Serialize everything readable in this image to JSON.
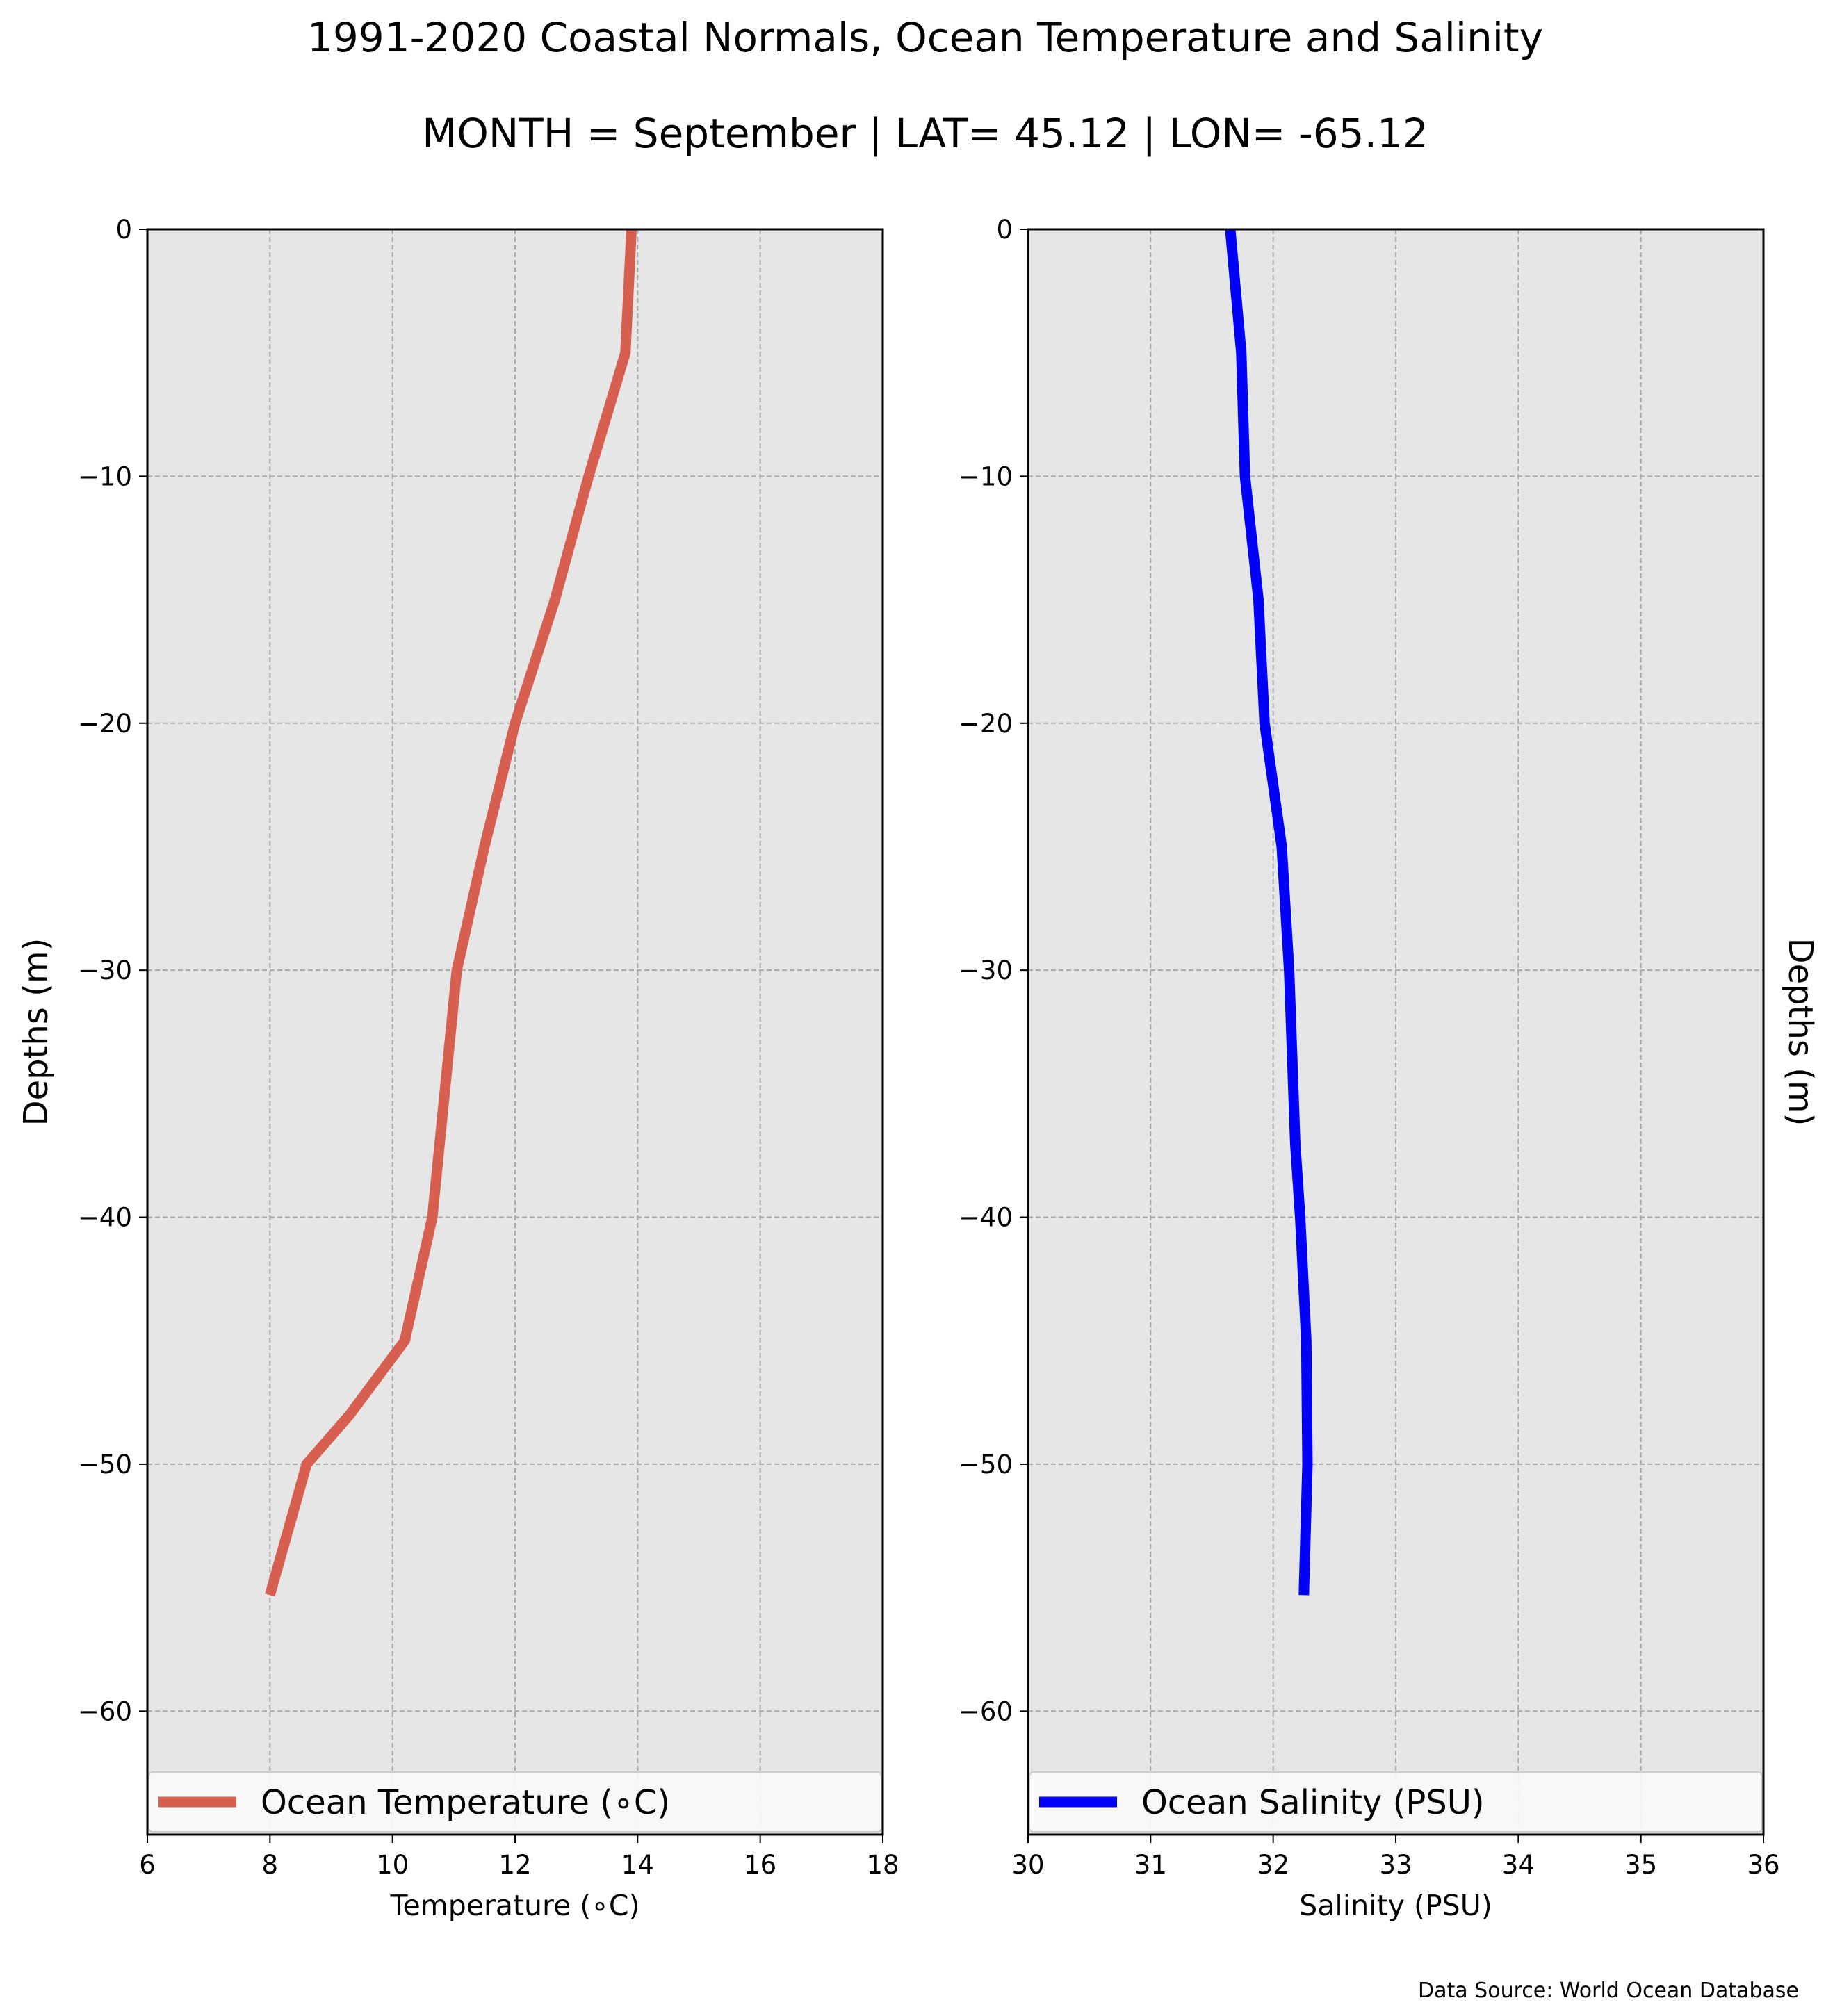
{
  "figure": {
    "title_line1": "1991-2020 Coastal Normals, Ocean Temperature and Salinity",
    "title_line2": "MONTH = September | LAT= 45.12 | LON= -65.12",
    "source_note": "Data Source: World Ocean Database",
    "colors": {
      "background": "#ffffff",
      "plot_background": "#e6e6e6",
      "grid": "#a9a9a9",
      "temperature_line": "#d65f4f",
      "salinity_line": "#0000ff",
      "legend_background": "#f9f9f9"
    }
  },
  "chart_data": [
    {
      "type": "line",
      "xlabel": "Temperature ($^\\circ$C)",
      "xlabel_display": "Temperature (∘C)",
      "ylabel": "Depths (m)",
      "xlim": [
        6,
        18
      ],
      "ylim": [
        -65,
        0
      ],
      "xticks": [
        6,
        8,
        10,
        12,
        14,
        16,
        18
      ],
      "yticks": [
        0,
        -10,
        -20,
        -30,
        -40,
        -50,
        -60
      ],
      "ytick_labels": [
        "0",
        "−10",
        "−20",
        "−30",
        "−40",
        "−50",
        "−60"
      ],
      "grid": true,
      "legend_position": "bottom",
      "series": [
        {
          "name": "Ocean Temperature (∘C)",
          "color": "#d65f4f",
          "x": [
            13.9,
            13.8,
            13.2,
            12.65,
            12.0,
            11.5,
            11.05,
            10.85,
            10.65,
            10.2,
            9.3,
            8.6,
            8.0
          ],
          "y": [
            0,
            -5,
            -10,
            -15,
            -20,
            -25,
            -30,
            -35,
            -40,
            -45,
            -48,
            -50,
            -55.3
          ]
        }
      ]
    },
    {
      "type": "line",
      "xlabel": "Salinity (PSU)",
      "ylabel": "Depths (m)",
      "xlim": [
        30,
        36
      ],
      "ylim": [
        -65,
        0
      ],
      "xticks": [
        30,
        31,
        32,
        33,
        34,
        35,
        36
      ],
      "yticks": [
        0,
        -10,
        -20,
        -30,
        -40,
        -50,
        -60
      ],
      "ytick_labels": [
        "0",
        "−10",
        "−20",
        "−30",
        "−40",
        "−50",
        "−60"
      ],
      "grid": true,
      "legend_position": "bottom",
      "series": [
        {
          "name": "Ocean Salinity (PSU)",
          "color": "#0000ff",
          "x": [
            31.65,
            31.74,
            31.77,
            31.88,
            31.93,
            32.07,
            32.13,
            32.18,
            32.22,
            32.27,
            32.28,
            32.25
          ],
          "y": [
            0,
            -5,
            -10,
            -15,
            -20,
            -25,
            -30,
            -37,
            -40,
            -45,
            -50,
            -55.3
          ]
        }
      ]
    }
  ]
}
